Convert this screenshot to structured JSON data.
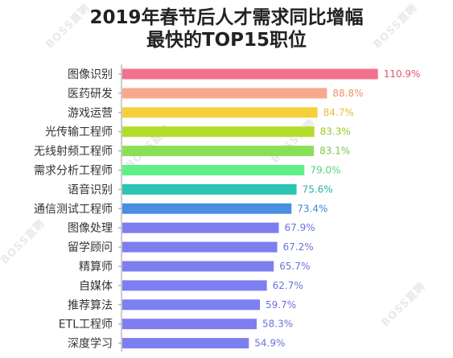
{
  "chart_data": {
    "type": "bar",
    "orientation": "horizontal",
    "title": "2019年春节后人才需求同比增幅\n最快的TOP15职位",
    "title_lines": [
      "2019年春节后人才需求同比增幅",
      "最快的TOP15职位"
    ],
    "categories": [
      "图像识别",
      "医药研发",
      "游戏运营",
      "光传输工程师",
      "无线射频工程师",
      "需求分析工程师",
      "语音识别",
      "通信测试工程师",
      "图像处理",
      "留学顾问",
      "精算师",
      "自媒体",
      "推荐算法",
      "ETL工程师",
      "深度学习"
    ],
    "values": [
      110.9,
      88.8,
      84.7,
      83.3,
      83.1,
      79.0,
      75.6,
      73.4,
      67.9,
      67.2,
      65.7,
      62.7,
      59.7,
      58.3,
      54.9
    ],
    "value_labels": [
      "110.9%",
      "88.8%",
      "84.7%",
      "83.3%",
      "83.1%",
      "79.0%",
      "75.6%",
      "73.4%",
      "67.9%",
      "67.2%",
      "65.7%",
      "62.7%",
      "59.7%",
      "58.3%",
      "54.9%"
    ],
    "colors": [
      "#f2718e",
      "#f9a88e",
      "#f7cf3d",
      "#b3dd2c",
      "#8bdf58",
      "#5ff08a",
      "#2cc4b3",
      "#4a8fe0",
      "#7d7ff0",
      "#7d7ff0",
      "#7d7ff0",
      "#7d7ff0",
      "#7d7ff0",
      "#7d7ff0",
      "#7d7ff0"
    ],
    "label_colors": [
      "#e0566f",
      "#f0916e",
      "#e8bd3a",
      "#9cc81f",
      "#7ac94a",
      "#52d67a",
      "#26b3a3",
      "#4286d4",
      "#6f70de",
      "#6f70de",
      "#6f70de",
      "#6f70de",
      "#6f70de",
      "#6f70de",
      "#6f70de"
    ],
    "xlim": [
      0,
      111
    ],
    "grid": false,
    "legend": "none",
    "watermark": "BOSS直聘"
  }
}
